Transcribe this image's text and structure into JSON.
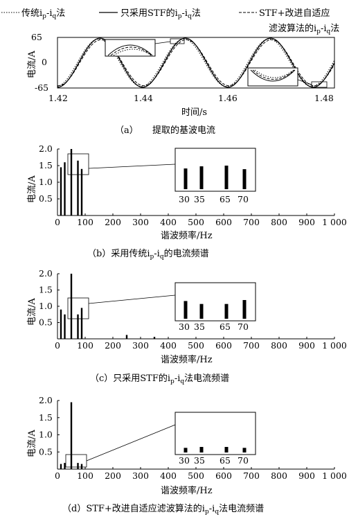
{
  "legend": {
    "a": "传统i",
    "a_sub1": "p",
    "a_mid": "-i",
    "a_sub2": "q",
    "a_end": "法",
    "b": "只采用STF的i",
    "b_sub1": "p",
    "b_mid": "-i",
    "b_sub2": "q",
    "b_end": "法",
    "c1": "STF+改进自适应",
    "c2": "滤波算法的i",
    "c2_sub1": "p",
    "c2_mid": "-i",
    "c2_sub2": "q",
    "c2_end": "法"
  },
  "chart_data": [
    {
      "id": "a",
      "type": "line",
      "ylabel": "电流/A",
      "xlabel": "时间/s",
      "xlim": [
        1.415,
        1.48
      ],
      "ylim": [
        -65,
        65
      ],
      "xticks": [
        "1.42",
        "1.44",
        "1.46",
        "1.48"
      ],
      "yticks": [
        "65",
        "0",
        "-65"
      ],
      "frequency_hz": 50,
      "series": [
        {
          "name": "传统ip-iq法",
          "amplitude": 61,
          "phase_deg": 6,
          "style": "dotted"
        },
        {
          "name": "只采用STF的ip-iq法",
          "amplitude": 63,
          "phase_deg": 0,
          "style": "solid"
        },
        {
          "name": "STF+改进自适应滤波算法的ip-iq法",
          "amplitude": 59,
          "phase_deg": -4,
          "style": "dashed"
        }
      ],
      "caption_label": "（a）",
      "caption_text": "提取的基波电流"
    },
    {
      "id": "b",
      "type": "bar",
      "ylabel": "电流/A",
      "xlabel": "谐波频率/Hz",
      "xlim": [
        0,
        1000
      ],
      "ylim": [
        0,
        2.0
      ],
      "xticks": [
        "0",
        "100",
        "200",
        "300",
        "400",
        "500",
        "600",
        "700",
        "800",
        "900",
        "1 000"
      ],
      "yticks": [
        "2.0",
        "1.5",
        "1.0",
        "0.5"
      ],
      "x": [
        30,
        35,
        50,
        65,
        70
      ],
      "values": [
        1.45,
        1.6,
        2.0,
        1.65,
        1.4
      ],
      "inset_ticks": [
        "30",
        "35",
        "65",
        "70"
      ],
      "caption_pre": "（b）采用传统i",
      "caption_sub1": "p",
      "caption_mid": "-i",
      "caption_sub2": "q",
      "caption_end": "的电流频谱"
    },
    {
      "id": "c",
      "type": "bar",
      "ylabel": "电流/A",
      "xlabel": "谐波频率/Hz",
      "xlim": [
        0,
        1000
      ],
      "ylim": [
        0,
        2.0
      ],
      "xticks": [
        "0",
        "100",
        "200",
        "300",
        "400",
        "500",
        "600",
        "700",
        "800",
        "900",
        "1 000"
      ],
      "yticks": [
        "2.0",
        "1.5",
        "1.0",
        "0.5"
      ],
      "x": [
        30,
        35,
        50,
        65,
        70,
        250,
        350
      ],
      "values": [
        0.9,
        0.75,
        2.0,
        0.75,
        0.95,
        0.12,
        0.06
      ],
      "inset_ticks": [
        "30",
        "35",
        "65",
        "70"
      ],
      "caption_pre": "（c）只采用STF的i",
      "caption_sub1": "p",
      "caption_mid": "-i",
      "caption_sub2": "q",
      "caption_end": "法电流频谱"
    },
    {
      "id": "d",
      "type": "bar",
      "ylabel": "电流/A",
      "xlabel": "谐波频率/Hz",
      "xlim": [
        0,
        1000
      ],
      "ylim": [
        0,
        2.0
      ],
      "xticks": [
        "0",
        "100",
        "200",
        "300",
        "400",
        "500",
        "600",
        "700",
        "800",
        "900",
        "1 000"
      ],
      "yticks": [
        "2.0",
        "1.5",
        "1.0",
        "0.5"
      ],
      "x": [
        30,
        35,
        50,
        65,
        70
      ],
      "values": [
        0.15,
        0.18,
        1.95,
        0.18,
        0.15
      ],
      "inset_ticks": [
        "30",
        "35",
        "65",
        "70"
      ],
      "caption_pre": "（d）STF+改进自适应滤波算法的i",
      "caption_sub1": "p",
      "caption_mid": "-i",
      "caption_sub2": "q",
      "caption_end": "法电流频谱"
    }
  ]
}
